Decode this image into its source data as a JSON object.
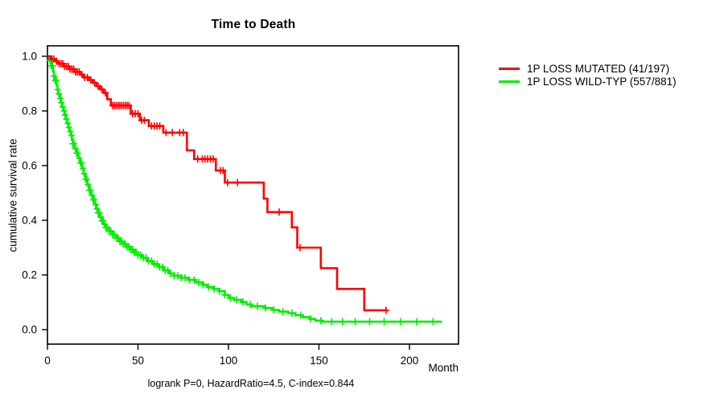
{
  "window": {
    "background": "#ffffff"
  },
  "colors": {
    "mutated_curve": "#ff0000",
    "wildtype_curve": "#00ee00",
    "axis": "#000000",
    "text": "#000000",
    "background": "#ffffff"
  },
  "chart_data": {
    "type": "line",
    "subtype": "kaplan-meier-step-survival",
    "title": "Time to Death",
    "xlabel": "Month",
    "ylabel": "cumulative survival rate",
    "footnote": "logrank P=0, HazardRatio=4.5, C-index=0.844",
    "xlim": [
      0,
      227
    ],
    "ylim": [
      0,
      1.0
    ],
    "xticks": [
      0,
      50,
      100,
      150,
      200
    ],
    "xtick_labels": [
      "0",
      "50",
      "100",
      "150",
      "200"
    ],
    "yticks": [
      0.0,
      0.2,
      0.4,
      0.6,
      0.8,
      1.0
    ],
    "ytick_labels": [
      "0.0",
      "0.2",
      "0.4",
      "0.6",
      "0.8",
      "1.0"
    ],
    "grid": false,
    "legend_position": "right-outside",
    "series": [
      {
        "name": "1P LOSS MUTATED (41/197)",
        "color": "#ff0000",
        "end_time": 188,
        "steps": [
          [
            0,
            1.0
          ],
          [
            2,
            0.99
          ],
          [
            4,
            0.982
          ],
          [
            6,
            0.973
          ],
          [
            9,
            0.963
          ],
          [
            12,
            0.953
          ],
          [
            15,
            0.943
          ],
          [
            18,
            0.933
          ],
          [
            20,
            0.923
          ],
          [
            23,
            0.913
          ],
          [
            25,
            0.903
          ],
          [
            27,
            0.891
          ],
          [
            29,
            0.879
          ],
          [
            31,
            0.866
          ],
          [
            33,
            0.843
          ],
          [
            35,
            0.82
          ],
          [
            46,
            0.79
          ],
          [
            51,
            0.766
          ],
          [
            56,
            0.745
          ],
          [
            64,
            0.721
          ],
          [
            77,
            0.656
          ],
          [
            81,
            0.624
          ],
          [
            93,
            0.582
          ],
          [
            98,
            0.538
          ],
          [
            119.5,
            0.479
          ],
          [
            121.5,
            0.43
          ],
          [
            135,
            0.374
          ],
          [
            138,
            0.3
          ],
          [
            151,
            0.225
          ],
          [
            160,
            0.149
          ],
          [
            175,
            0.071
          ]
        ],
        "censor_times": [
          2.5,
          3.5,
          5,
          6.5,
          7.5,
          8.5,
          9.5,
          10.5,
          11.5,
          12.5,
          13.5,
          14.5,
          15.5,
          16.5,
          17.5,
          19,
          20.5,
          22,
          24,
          26,
          28,
          30,
          32,
          36,
          37,
          38,
          39,
          40,
          41,
          42,
          43,
          44,
          45,
          47,
          48.5,
          50,
          52,
          53.5,
          57.5,
          59,
          60.5,
          62,
          65.5,
          69,
          73,
          75,
          83,
          85.5,
          87,
          88.5,
          90,
          91.5,
          95.5,
          97,
          99.5,
          105,
          128,
          139.5,
          187
        ]
      },
      {
        "name": "1P LOSS WILD-TYP (557/881)",
        "color": "#00ee00",
        "end_time": 218,
        "steps": [
          [
            0,
            1.0
          ],
          [
            1,
            0.985
          ],
          [
            2,
            0.965
          ],
          [
            3,
            0.945
          ],
          [
            3.5,
            0.928
          ],
          [
            4,
            0.912
          ],
          [
            5,
            0.895
          ],
          [
            5.5,
            0.878
          ],
          [
            6,
            0.862
          ],
          [
            7,
            0.846
          ],
          [
            7.5,
            0.83
          ],
          [
            8,
            0.815
          ],
          [
            9,
            0.8
          ],
          [
            9.5,
            0.785
          ],
          [
            10,
            0.77
          ],
          [
            11,
            0.755
          ],
          [
            11.5,
            0.74
          ],
          [
            12,
            0.725
          ],
          [
            13,
            0.71
          ],
          [
            13.5,
            0.695
          ],
          [
            14,
            0.68
          ],
          [
            15,
            0.663
          ],
          [
            16,
            0.646
          ],
          [
            17,
            0.628
          ],
          [
            18,
            0.61
          ],
          [
            19,
            0.59
          ],
          [
            20,
            0.57
          ],
          [
            21,
            0.55
          ],
          [
            22,
            0.53
          ],
          [
            23,
            0.51
          ],
          [
            24,
            0.492
          ],
          [
            25,
            0.475
          ],
          [
            26,
            0.458
          ],
          [
            27,
            0.442
          ],
          [
            28,
            0.427
          ],
          [
            29,
            0.412
          ],
          [
            30,
            0.398
          ],
          [
            31,
            0.386
          ],
          [
            32,
            0.374
          ],
          [
            34,
            0.36
          ],
          [
            36,
            0.347
          ],
          [
            38,
            0.335
          ],
          [
            40,
            0.323
          ],
          [
            42,
            0.313
          ],
          [
            44,
            0.303
          ],
          [
            46,
            0.293
          ],
          [
            48,
            0.283
          ],
          [
            50,
            0.273
          ],
          [
            52,
            0.263
          ],
          [
            55,
            0.251
          ],
          [
            58,
            0.24
          ],
          [
            61,
            0.229
          ],
          [
            64,
            0.217
          ],
          [
            67,
            0.206
          ],
          [
            70,
            0.197
          ],
          [
            74,
            0.19
          ],
          [
            78,
            0.182
          ],
          [
            82,
            0.173
          ],
          [
            86,
            0.164
          ],
          [
            88,
            0.156
          ],
          [
            92,
            0.149
          ],
          [
            95,
            0.141
          ],
          [
            98,
            0.127
          ],
          [
            100,
            0.116
          ],
          [
            103,
            0.109
          ],
          [
            107,
            0.101
          ],
          [
            110,
            0.092
          ],
          [
            113,
            0.086
          ],
          [
            120,
            0.079
          ],
          [
            124,
            0.072
          ],
          [
            128,
            0.066
          ],
          [
            133,
            0.06
          ],
          [
            137,
            0.053
          ],
          [
            141,
            0.046
          ],
          [
            145,
            0.039
          ],
          [
            148,
            0.033
          ],
          [
            152,
            0.029
          ]
        ],
        "censor_times": [
          1.4,
          2.1,
          2.8,
          3.5,
          4.2,
          4.9,
          5.6,
          6.3,
          7,
          7.7,
          8.4,
          9.1,
          9.8,
          10.5,
          11.2,
          11.9,
          12.6,
          13.3,
          14,
          14.7,
          15.4,
          16.1,
          16.8,
          17.5,
          18.2,
          18.9,
          19.6,
          20.3,
          21,
          21.7,
          22.4,
          23.1,
          23.8,
          24.5,
          25.2,
          25.9,
          26.6,
          27.3,
          28,
          28.7,
          29.4,
          30.1,
          30.8,
          31.5,
          32.2,
          33,
          34,
          35,
          36,
          37,
          38,
          39,
          40,
          41,
          42,
          43,
          44,
          45,
          46,
          47,
          48,
          49,
          50,
          51.5,
          53,
          54.5,
          56,
          57.5,
          59,
          60.5,
          62,
          63.5,
          65,
          66.5,
          68,
          70,
          72,
          74,
          76,
          78.5,
          81,
          83.5,
          86,
          89,
          92,
          95,
          98,
          101,
          104.5,
          108,
          112,
          116,
          120.5,
          125,
          130,
          135,
          140,
          145.5,
          151,
          157,
          163,
          170,
          178,
          186,
          195,
          204,
          213
        ]
      }
    ]
  }
}
